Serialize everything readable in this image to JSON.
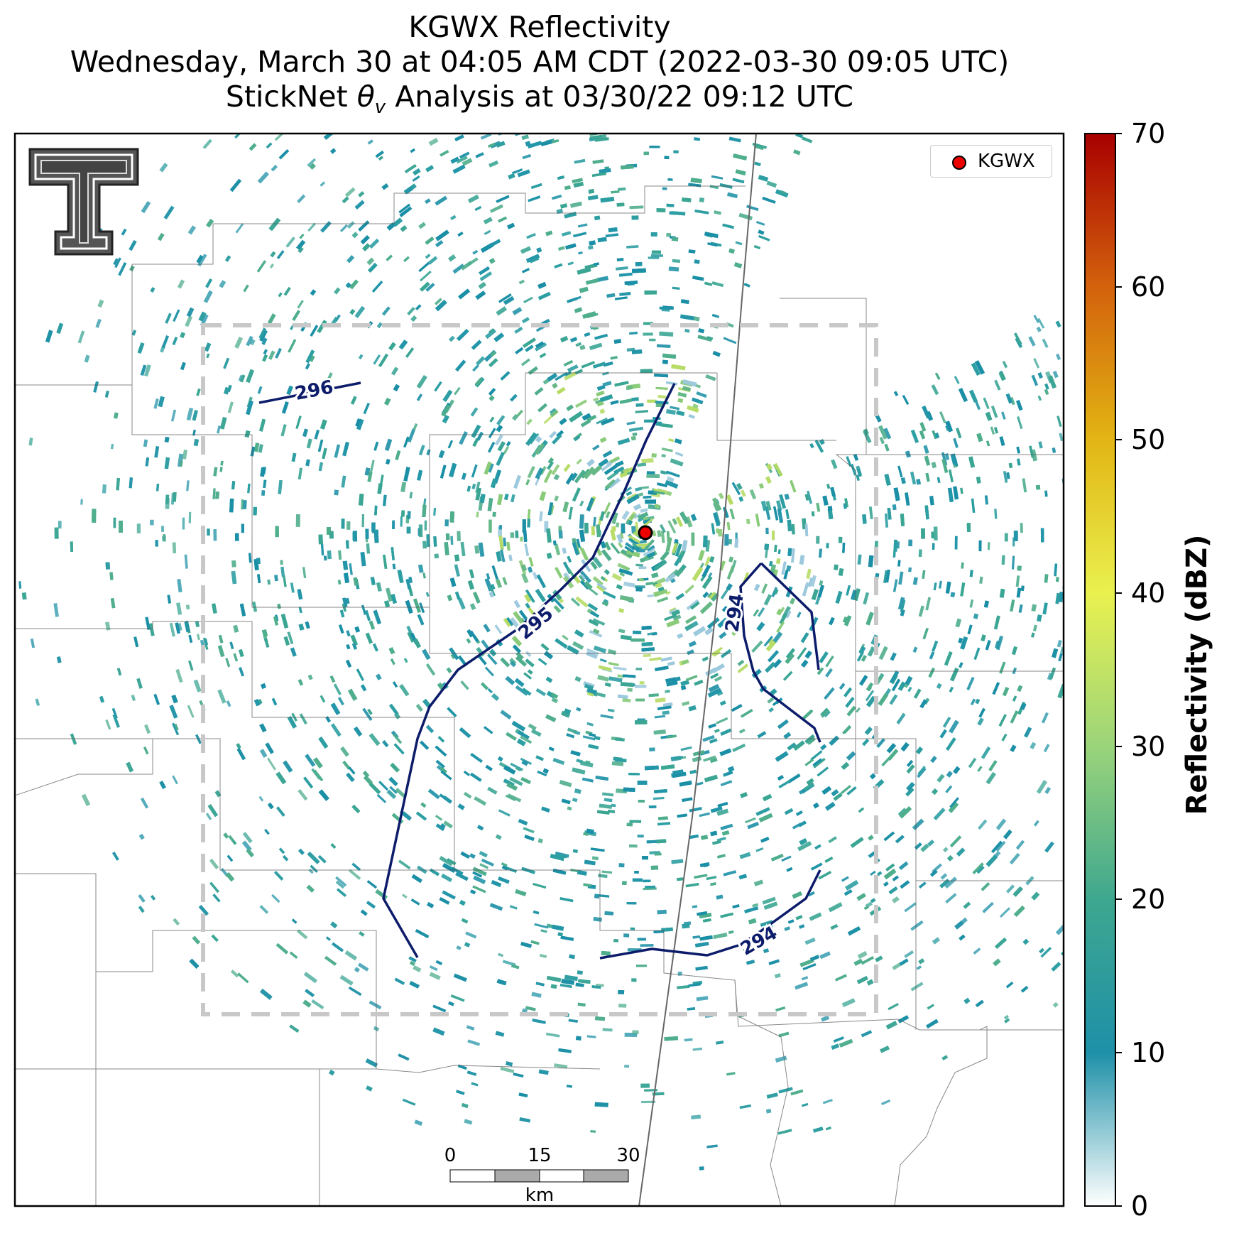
{
  "title": {
    "line1": "KGWX Reflectivity",
    "line2": "Wednesday, March 30 at 04:05 AM CDT (2022-03-30 09:05 UTC)",
    "line3_prefix": "StickNet ",
    "line3_symbol": "θ",
    "line3_sub": "v",
    "line3_suffix": " Analysis at 03/30/22 09:12 UTC"
  },
  "legend": {
    "label": "KGWX",
    "marker_color": "#ee0000"
  },
  "colorbar": {
    "title": "Reflectivity (dBZ)",
    "ticks": [
      "0",
      "10",
      "20",
      "30",
      "40",
      "50",
      "60",
      "70"
    ],
    "colors": [
      "#ffffff",
      "#1e90a8",
      "#3ea78f",
      "#9bd47a",
      "#e9f14f",
      "#e2b514",
      "#d3620c",
      "#a80000"
    ]
  },
  "contours": [
    {
      "level": "296",
      "label": "296"
    },
    {
      "level": "295",
      "label": "295"
    },
    {
      "level": "294",
      "label": "294"
    },
    {
      "level": "294",
      "label": "294"
    }
  ],
  "scalebar": {
    "ticks": [
      "0",
      "15",
      "30"
    ],
    "unit": "km"
  },
  "radar": {
    "name": "KGWX"
  },
  "logo": {
    "name": "Texas Tech double-T logo"
  }
}
